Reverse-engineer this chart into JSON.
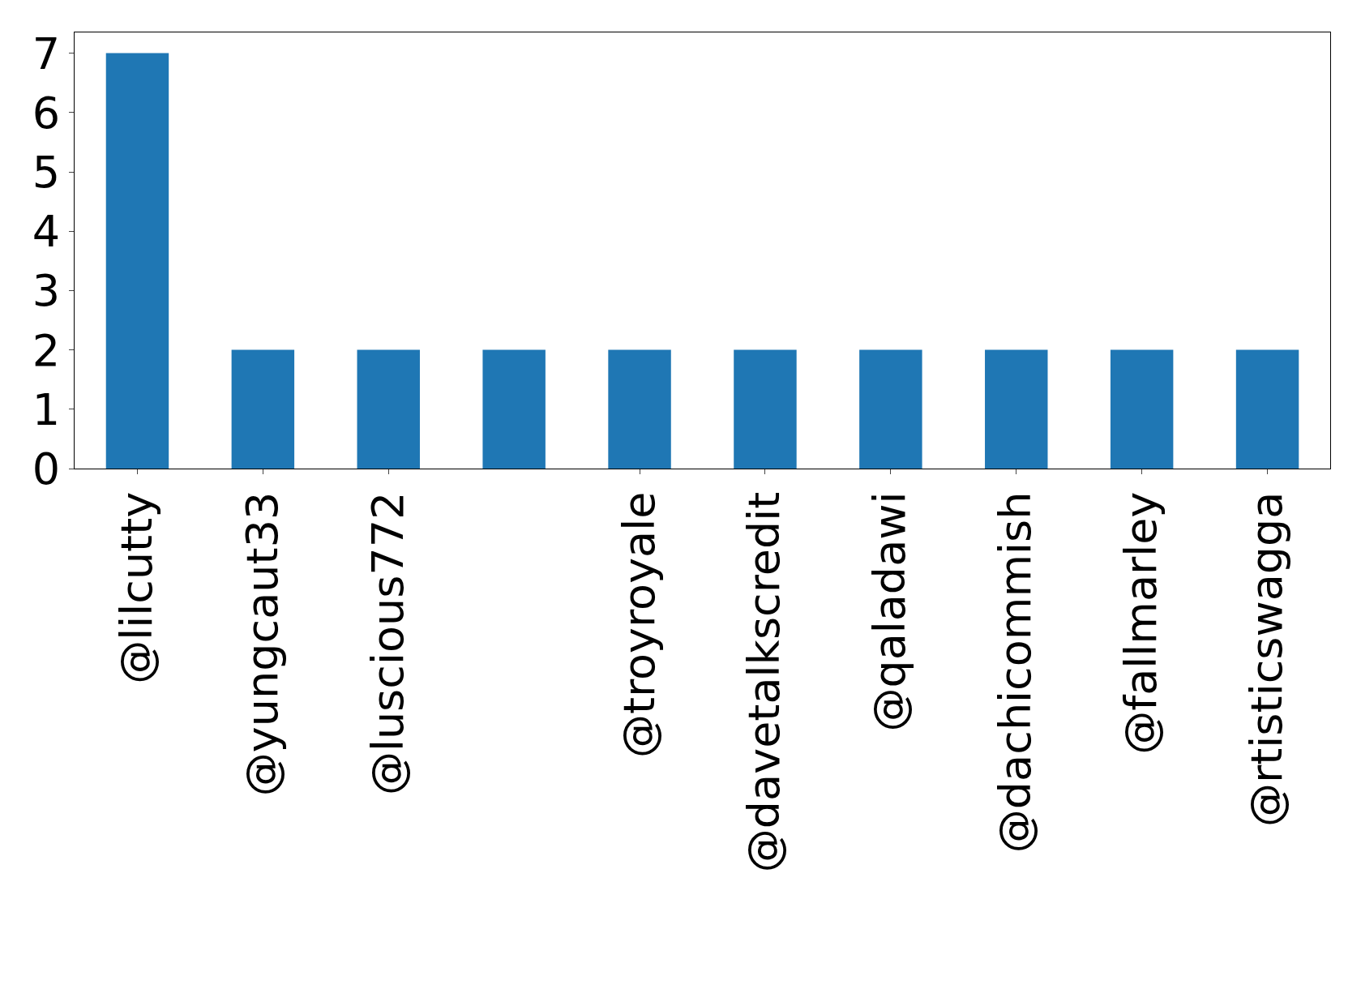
{
  "chart_data": {
    "type": "bar",
    "categories": [
      "@lilcutty",
      "@yungcaut33",
      "@luscious772",
      null,
      "@troyroyale",
      "@davetalkscredit",
      "@qaladawi",
      "@dachicommish",
      "@fallmarley",
      "@rtisticswagga"
    ],
    "values": [
      7,
      2,
      2,
      2,
      2,
      2,
      2,
      2,
      2,
      2
    ],
    "color": "#1f77b4",
    "ylim": [
      0,
      7.35
    ],
    "yticks": [
      0,
      1,
      2,
      3,
      4,
      5,
      6,
      7
    ]
  }
}
